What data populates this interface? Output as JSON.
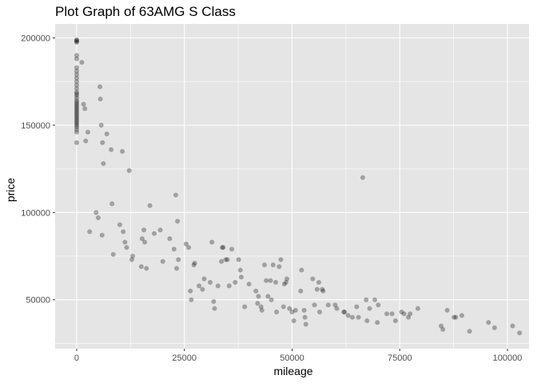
{
  "chart_data": {
    "type": "scatter",
    "title": "Plot Graph of 63AMG S Class",
    "xlabel": "mileage",
    "ylabel": "price",
    "xlim": [
      -5000,
      105000
    ],
    "ylim": [
      22000,
      208000
    ],
    "x_ticks": [
      0,
      25000,
      50000,
      75000,
      100000
    ],
    "y_ticks": [
      50000,
      100000,
      150000,
      200000
    ],
    "x_tick_labels": [
      "0",
      "25000",
      "50000",
      "75000",
      "100000"
    ],
    "y_tick_labels": [
      "50000",
      "100000",
      "150000",
      "200000"
    ],
    "grid": true,
    "legend": "none",
    "colors": {
      "panel_background": "#e5e5e5",
      "grid": "#ffffff",
      "point": "#000000",
      "point_opacity": 0.3,
      "tick_label": "#4d4d4d"
    },
    "points": [
      [
        0,
        199000
      ],
      [
        0,
        198500
      ],
      [
        0,
        198000
      ],
      [
        0,
        197500
      ],
      [
        0,
        183000
      ],
      [
        0,
        181000
      ],
      [
        0,
        179000
      ],
      [
        0,
        177000
      ],
      [
        0,
        175000
      ],
      [
        0,
        173000
      ],
      [
        0,
        171000
      ],
      [
        0,
        169000
      ],
      [
        0,
        168000
      ],
      [
        0,
        167000
      ],
      [
        0,
        165500
      ],
      [
        0,
        164000
      ],
      [
        0,
        163000
      ],
      [
        0,
        162000
      ],
      [
        0,
        161000
      ],
      [
        0,
        160000
      ],
      [
        0,
        159000
      ],
      [
        0,
        158000
      ],
      [
        0,
        157000
      ],
      [
        0,
        156000
      ],
      [
        0,
        155000
      ],
      [
        0,
        154000
      ],
      [
        0,
        153000
      ],
      [
        0,
        152000
      ],
      [
        0,
        151000
      ],
      [
        0,
        150000
      ],
      [
        0,
        149000
      ],
      [
        0,
        147500
      ],
      [
        0,
        146000
      ],
      [
        0,
        140000
      ],
      [
        0,
        190000
      ],
      [
        0,
        188000
      ],
      [
        1200,
        186000
      ],
      [
        1600,
        162000
      ],
      [
        1900,
        159500
      ],
      [
        2100,
        141000
      ],
      [
        2600,
        146000
      ],
      [
        3000,
        89000
      ],
      [
        4500,
        100000
      ],
      [
        5000,
        97000
      ],
      [
        5400,
        172000
      ],
      [
        5500,
        165000
      ],
      [
        5700,
        150000
      ],
      [
        5900,
        87000
      ],
      [
        6000,
        140000
      ],
      [
        6200,
        128000
      ],
      [
        7000,
        145000
      ],
      [
        8000,
        136000
      ],
      [
        8200,
        105000
      ],
      [
        8500,
        76000
      ],
      [
        10000,
        93000
      ],
      [
        10600,
        135000
      ],
      [
        10800,
        89000
      ],
      [
        11200,
        83000
      ],
      [
        11600,
        80000
      ],
      [
        12200,
        124000
      ],
      [
        12800,
        73000
      ],
      [
        13000,
        75000
      ],
      [
        15000,
        69000
      ],
      [
        15200,
        85000
      ],
      [
        15600,
        90000
      ],
      [
        15800,
        83000
      ],
      [
        16200,
        68000
      ],
      [
        17000,
        104000
      ],
      [
        18000,
        88000
      ],
      [
        19400,
        90000
      ],
      [
        20000,
        72000
      ],
      [
        21600,
        85000
      ],
      [
        22600,
        79000
      ],
      [
        23000,
        110000
      ],
      [
        23200,
        68000
      ],
      [
        23400,
        95000
      ],
      [
        23600,
        73000
      ],
      [
        25400,
        82000
      ],
      [
        26000,
        80000
      ],
      [
        26400,
        55000
      ],
      [
        26600,
        50000
      ],
      [
        27200,
        70000
      ],
      [
        27400,
        71000
      ],
      [
        28400,
        58000
      ],
      [
        29200,
        56000
      ],
      [
        29600,
        62000
      ],
      [
        31000,
        60000
      ],
      [
        31400,
        83000
      ],
      [
        31800,
        49000
      ],
      [
        32000,
        45000
      ],
      [
        32800,
        58000
      ],
      [
        33600,
        72000
      ],
      [
        33800,
        80000
      ],
      [
        34000,
        80000
      ],
      [
        34600,
        73000
      ],
      [
        35000,
        73000
      ],
      [
        35400,
        58000
      ],
      [
        36000,
        79000
      ],
      [
        36800,
        60000
      ],
      [
        37600,
        73000
      ],
      [
        38000,
        67000
      ],
      [
        38200,
        63000
      ],
      [
        39000,
        46000
      ],
      [
        40000,
        59000
      ],
      [
        41600,
        55000
      ],
      [
        42000,
        48000
      ],
      [
        42200,
        52000
      ],
      [
        42800,
        46000
      ],
      [
        43000,
        44000
      ],
      [
        43600,
        70000
      ],
      [
        44000,
        61000
      ],
      [
        44400,
        52000
      ],
      [
        45000,
        61000
      ],
      [
        45200,
        50000
      ],
      [
        45600,
        70000
      ],
      [
        46200,
        60000
      ],
      [
        46400,
        43000
      ],
      [
        47000,
        69000
      ],
      [
        47400,
        73000
      ],
      [
        48000,
        46000
      ],
      [
        48200,
        59000
      ],
      [
        48600,
        60000
      ],
      [
        48800,
        62000
      ],
      [
        49400,
        45000
      ],
      [
        50000,
        43000
      ],
      [
        50400,
        38000
      ],
      [
        50800,
        44000
      ],
      [
        52000,
        55000
      ],
      [
        52200,
        67000
      ],
      [
        52800,
        44000
      ],
      [
        53000,
        40000
      ],
      [
        53200,
        36000
      ],
      [
        54800,
        62000
      ],
      [
        55200,
        47000
      ],
      [
        55800,
        56000
      ],
      [
        56200,
        60000
      ],
      [
        56400,
        43000
      ],
      [
        57000,
        56000
      ],
      [
        57200,
        55000
      ],
      [
        58400,
        47000
      ],
      [
        60000,
        47000
      ],
      [
        60400,
        45000
      ],
      [
        62000,
        43000
      ],
      [
        62200,
        43000
      ],
      [
        63000,
        41000
      ],
      [
        64000,
        40000
      ],
      [
        65000,
        46000
      ],
      [
        65400,
        40000
      ],
      [
        66400,
        120000
      ],
      [
        67200,
        50000
      ],
      [
        67400,
        38000
      ],
      [
        68000,
        45000
      ],
      [
        69200,
        50000
      ],
      [
        69800,
        37000
      ],
      [
        70000,
        47000
      ],
      [
        72000,
        42000
      ],
      [
        73200,
        42000
      ],
      [
        74000,
        38000
      ],
      [
        75400,
        43000
      ],
      [
        76000,
        42000
      ],
      [
        77000,
        40000
      ],
      [
        77400,
        42000
      ],
      [
        79200,
        45000
      ],
      [
        84600,
        35000
      ],
      [
        85000,
        33000
      ],
      [
        86000,
        44000
      ],
      [
        87600,
        40000
      ],
      [
        88000,
        40000
      ],
      [
        89400,
        41000
      ],
      [
        91200,
        32000
      ],
      [
        95600,
        37000
      ],
      [
        97000,
        34000
      ],
      [
        101200,
        35000
      ],
      [
        102800,
        31000
      ]
    ]
  }
}
